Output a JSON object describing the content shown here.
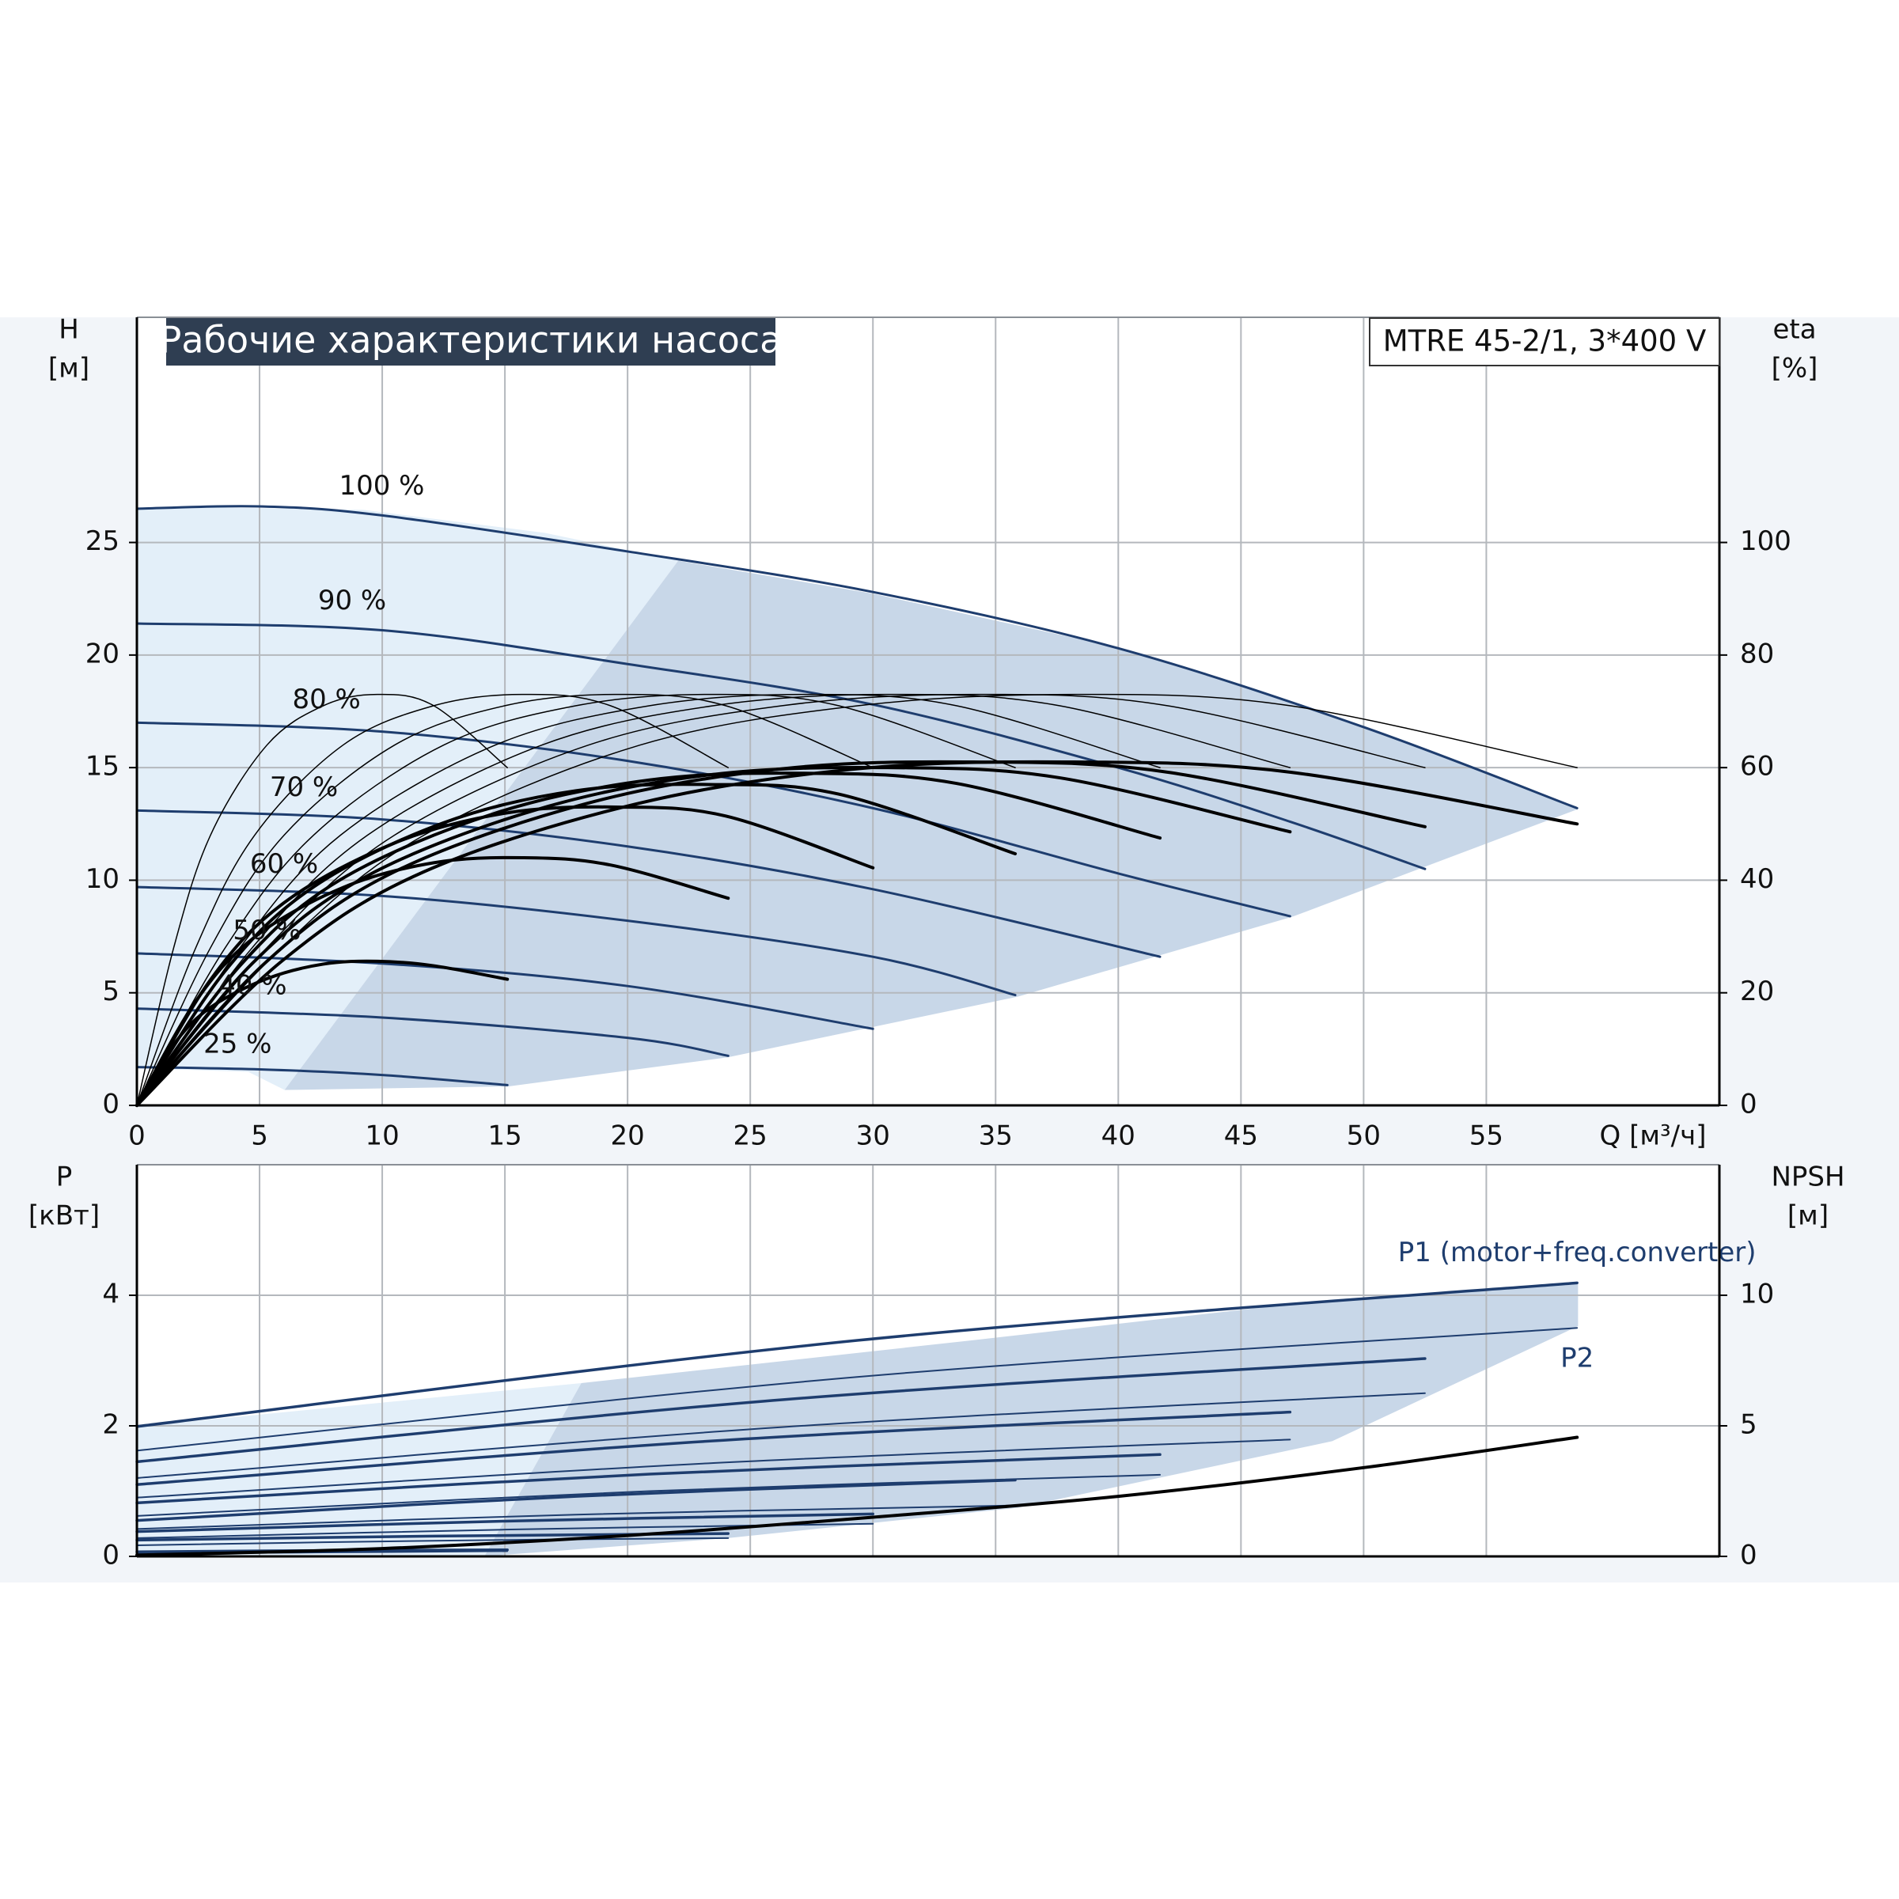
{
  "chart_data": [
    {
      "type": "line",
      "title": "Рабочие характеристики насоса",
      "subtitle": "MTRE 45-2/1, 3*400 V",
      "ylabel": "H",
      "yunit": "[м]",
      "y2label": "eta",
      "y2unit": "[%]",
      "xlabel": "Q [м³/ч]",
      "xlim": [
        0,
        64.5
      ],
      "ylim": [
        0,
        35
      ],
      "y2lim": [
        0,
        140
      ],
      "xticks": [
        0,
        5,
        10,
        15,
        20,
        25,
        30,
        35,
        40,
        45,
        50,
        55
      ],
      "yticks": [
        0,
        5,
        10,
        15,
        20,
        25
      ],
      "y2ticks": [
        0,
        20,
        40,
        60,
        80,
        100
      ],
      "grid": true,
      "series": [
        {
          "name": "100 %",
          "color": "#1e3d6e",
          "width": 3,
          "x": [
            0,
            5,
            10,
            20,
            30,
            40,
            50,
            58.7
          ],
          "values": [
            26.5,
            26.6,
            26.2,
            24.6,
            22.8,
            20.3,
            16.8,
            13.2
          ]
        },
        {
          "name": "90 %",
          "color": "#1e3d6e",
          "width": 3,
          "x": [
            0,
            10,
            20,
            30,
            40,
            47,
            52.5
          ],
          "values": [
            21.4,
            21.1,
            19.6,
            17.8,
            15.0,
            12.6,
            10.5
          ]
        },
        {
          "name": "80 %",
          "color": "#1e3d6e",
          "width": 3,
          "x": [
            0,
            10,
            20,
            30,
            40,
            47
          ],
          "values": [
            17.0,
            16.6,
            15.3,
            13.2,
            10.3,
            8.4
          ]
        },
        {
          "name": "70 %",
          "color": "#1e3d6e",
          "width": 3,
          "x": [
            0,
            10,
            20,
            30,
            41.7
          ],
          "values": [
            13.1,
            12.7,
            11.5,
            9.6,
            6.6
          ]
        },
        {
          "name": "60 %",
          "color": "#1e3d6e",
          "width": 3,
          "x": [
            0,
            10,
            20,
            30,
            35.8
          ],
          "values": [
            9.7,
            9.3,
            8.2,
            6.6,
            4.9
          ]
        },
        {
          "name": "50 %",
          "color": "#1e3d6e",
          "width": 3,
          "x": [
            0,
            10,
            20,
            30
          ],
          "values": [
            6.75,
            6.3,
            5.3,
            3.4
          ]
        },
        {
          "name": "40 %",
          "color": "#1e3d6e",
          "width": 3,
          "x": [
            0,
            10,
            20,
            24.1
          ],
          "values": [
            4.3,
            3.9,
            3.0,
            2.2
          ]
        },
        {
          "name": "25 %",
          "color": "#1e3d6e",
          "width": 3,
          "x": [
            0,
            5,
            10,
            15.1
          ],
          "values": [
            1.7,
            1.6,
            1.35,
            0.9
          ]
        },
        {
          "color": "#000000",
          "width": 1.5,
          "axis": "y2",
          "x": [
            0,
            5.9,
            11.7,
            20.5,
            29.4,
            38.2,
            47,
            58.7
          ],
          "values": [
            0,
            28,
            48,
            64,
            71,
            73,
            71,
            60
          ]
        },
        {
          "color": "#000000",
          "width": 1.5,
          "axis": "y2",
          "x": [
            0,
            5.3,
            10.5,
            18.4,
            26.3,
            34.1,
            42,
            52.5
          ],
          "values": [
            0,
            28,
            48,
            64,
            71,
            73,
            71,
            60
          ]
        },
        {
          "color": "#000000",
          "width": 1.5,
          "axis": "y2",
          "x": [
            0,
            4.7,
            9.4,
            16.5,
            23.5,
            30.6,
            37.6,
            47
          ],
          "values": [
            0,
            28,
            48,
            64,
            71,
            73,
            71,
            60
          ]
        },
        {
          "color": "#000000",
          "width": 1.5,
          "axis": "y2",
          "x": [
            0,
            4.2,
            8.3,
            14.6,
            20.9,
            27.1,
            33.4,
            41.7
          ],
          "values": [
            0,
            28,
            48,
            64,
            71,
            73,
            71,
            60
          ]
        },
        {
          "color": "#000000",
          "width": 1.5,
          "axis": "y2",
          "x": [
            0,
            3.6,
            7.2,
            12.5,
            17.9,
            23.3,
            28.6,
            35.8
          ],
          "values": [
            0,
            28,
            48,
            64,
            71,
            73,
            71,
            60
          ]
        },
        {
          "color": "#000000",
          "width": 1.5,
          "axis": "y2",
          "x": [
            0,
            3,
            6,
            10.5,
            15,
            19.5,
            24,
            30
          ],
          "values": [
            0,
            28,
            48,
            64,
            71,
            73,
            71,
            60
          ]
        },
        {
          "color": "#000000",
          "width": 1.5,
          "axis": "y2",
          "x": [
            0,
            2.4,
            4.8,
            8.4,
            12.1,
            15.7,
            19.3,
            24.1
          ],
          "values": [
            0,
            28,
            48,
            64,
            71,
            73,
            71,
            60
          ]
        },
        {
          "color": "#000000",
          "width": 1.5,
          "axis": "y2",
          "x": [
            0,
            1.5,
            3,
            5.3,
            7.6,
            9.8,
            12.1,
            15.1
          ],
          "values": [
            0,
            28,
            48,
            64,
            71,
            73,
            71,
            60
          ]
        },
        {
          "color": "#000000",
          "width": 4,
          "axis": "y2",
          "x": [
            0,
            5.9,
            11.7,
            20.5,
            29.4,
            38.2,
            47,
            58.7
          ],
          "values": [
            0,
            25.6,
            41.5,
            53.7,
            59.8,
            61,
            59.2,
            50
          ]
        },
        {
          "color": "#000000",
          "width": 4,
          "axis": "y2",
          "x": [
            0,
            5.3,
            10.5,
            18.4,
            26.3,
            34.1,
            42,
            52.5
          ],
          "values": [
            0,
            25.6,
            41.5,
            53.7,
            59.8,
            61,
            59.2,
            49.5
          ]
        },
        {
          "color": "#000000",
          "width": 4,
          "axis": "y2",
          "x": [
            0,
            4.7,
            9.4,
            16.5,
            23.5,
            30.6,
            37.6,
            47
          ],
          "values": [
            0,
            25.2,
            40.8,
            52.8,
            58.8,
            60,
            58.2,
            48.6
          ]
        },
        {
          "color": "#000000",
          "width": 4,
          "axis": "y2",
          "x": [
            0,
            4.2,
            8.3,
            14.6,
            20.9,
            27.1,
            33.4,
            41.7
          ],
          "values": [
            0,
            24.8,
            40.1,
            51.9,
            57.8,
            59,
            57.2,
            47.5
          ]
        },
        {
          "color": "#000000",
          "width": 4,
          "axis": "y2",
          "x": [
            0,
            3.6,
            7.2,
            12.5,
            17.9,
            23.3,
            28.6,
            35.8
          ],
          "values": [
            0,
            23.9,
            38.8,
            50.2,
            55.9,
            57,
            55.3,
            44.7
          ]
        },
        {
          "color": "#000000",
          "width": 4,
          "axis": "y2",
          "x": [
            0,
            3,
            6,
            10.5,
            15,
            19.5,
            24,
            30
          ],
          "values": [
            0,
            22.3,
            36,
            46.6,
            51.9,
            53,
            51.4,
            42.2
          ]
        },
        {
          "color": "#000000",
          "width": 4,
          "axis": "y2",
          "x": [
            0,
            2.4,
            4.8,
            8.4,
            12.1,
            15.7,
            19.3,
            24.1
          ],
          "values": [
            0,
            18.5,
            29.9,
            38.7,
            43.1,
            44,
            42.7,
            36.8
          ]
        },
        {
          "color": "#000000",
          "width": 4,
          "axis": "y2",
          "x": [
            0,
            1.5,
            3,
            5.3,
            7.6,
            9.8,
            12.1,
            15.1
          ],
          "values": [
            0,
            10.8,
            17.4,
            22.5,
            25.1,
            25.6,
            24.8,
            22.4
          ]
        }
      ]
    },
    {
      "type": "line",
      "ylabel": "P",
      "yunit": "[кВт]",
      "y2label": "NPSH",
      "y2unit": "[м]",
      "xlim": [
        0,
        64.5
      ],
      "ylim": [
        0,
        6
      ],
      "y2lim": [
        0,
        15
      ],
      "xticks": [
        0,
        5,
        10,
        15,
        20,
        25,
        30,
        35,
        40,
        45,
        50,
        55
      ],
      "xtick_labels": false,
      "yticks": [
        0,
        2,
        4
      ],
      "y2ticks": [
        0,
        5,
        10
      ],
      "grid": true,
      "series": [
        {
          "name": "P1 (motor+freq.converter)",
          "color": "#1e3d6e",
          "width": 3.5,
          "x": [
            0,
            29.4,
            58.7
          ],
          "values": [
            1.99,
            3.31,
            4.19
          ]
        },
        {
          "name": "P2",
          "color": "#1e3d6e",
          "width": 2,
          "x": [
            0,
            29.4,
            58.7
          ],
          "values": [
            1.62,
            2.75,
            3.5
          ]
        },
        {
          "color": "#1e3d6e",
          "width": 3.5,
          "x": [
            0,
            26.3,
            52.5
          ],
          "values": [
            1.45,
            2.4,
            3.03
          ]
        },
        {
          "color": "#1e3d6e",
          "width": 2,
          "x": [
            0,
            26.3,
            52.5
          ],
          "values": [
            1.2,
            1.98,
            2.5
          ]
        },
        {
          "color": "#1e3d6e",
          "width": 3.5,
          "x": [
            0,
            23.5,
            47
          ],
          "values": [
            1.1,
            1.77,
            2.21
          ]
        },
        {
          "color": "#1e3d6e",
          "width": 2,
          "x": [
            0,
            23.5,
            47
          ],
          "values": [
            0.9,
            1.43,
            1.79
          ]
        },
        {
          "color": "#1e3d6e",
          "width": 3.5,
          "x": [
            0,
            20.9,
            41.7
          ],
          "values": [
            0.82,
            1.26,
            1.56
          ]
        },
        {
          "color": "#1e3d6e",
          "width": 2,
          "x": [
            0,
            20.9,
            41.7
          ],
          "values": [
            0.62,
            1.0,
            1.25
          ]
        },
        {
          "color": "#1e3d6e",
          "width": 3.5,
          "x": [
            0,
            17.9,
            35.8
          ],
          "values": [
            0.55,
            0.92,
            1.17
          ]
        },
        {
          "color": "#1e3d6e",
          "width": 2,
          "x": [
            0,
            17.9,
            35.8
          ],
          "values": [
            0.42,
            0.64,
            0.78
          ]
        },
        {
          "color": "#1e3d6e",
          "width": 3.5,
          "x": [
            0,
            15,
            30
          ],
          "values": [
            0.38,
            0.54,
            0.65
          ]
        },
        {
          "color": "#1e3d6e",
          "width": 2,
          "x": [
            0,
            15,
            30
          ],
          "values": [
            0.28,
            0.41,
            0.5
          ]
        },
        {
          "color": "#1e3d6e",
          "width": 3.5,
          "x": [
            0,
            12.1,
            24.1
          ],
          "values": [
            0.25,
            0.31,
            0.35
          ]
        },
        {
          "color": "#1e3d6e",
          "width": 2,
          "x": [
            0,
            12.1,
            24.1
          ],
          "values": [
            0.17,
            0.24,
            0.28
          ]
        },
        {
          "color": "#1e3d6e",
          "width": 3.5,
          "x": [
            0,
            7.6,
            15.1
          ],
          "values": [
            0.07,
            0.09,
            0.1
          ]
        },
        {
          "color": "#1e3d6e",
          "width": 2,
          "x": [
            0,
            7.6,
            15.1
          ],
          "values": [
            0.04,
            0.06,
            0.08
          ]
        },
        {
          "color": "#000000",
          "width": 4,
          "axis": "y2",
          "x": [
            0,
            10,
            20,
            30,
            40,
            50,
            58.7
          ],
          "values": [
            0.05,
            0.3,
            0.8,
            1.5,
            2.3,
            3.4,
            4.56
          ]
        }
      ]
    }
  ]
}
